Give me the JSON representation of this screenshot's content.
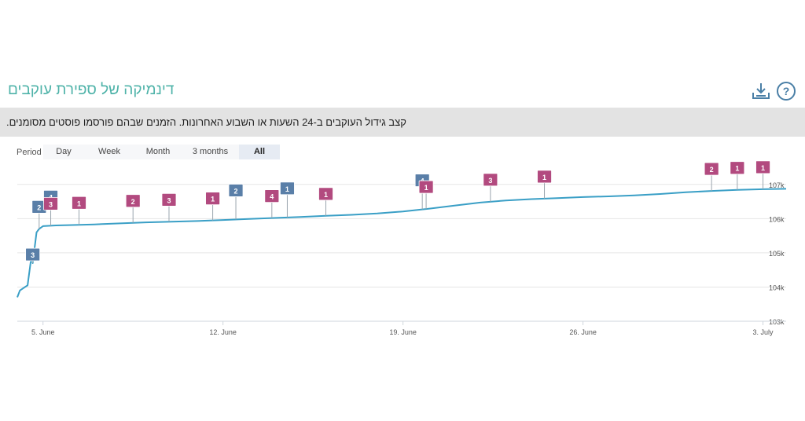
{
  "header": {
    "title": "דינמיקה של ספירת עוקבים",
    "download_icon": "download-icon",
    "help_icon": "question-mark-icon"
  },
  "description": "קצב גידול העוקבים ב-24 השעות או השבוע האחרונות. הזמנים שבהם פורסמו פוסטים מסומנים.",
  "period": {
    "label": "Period",
    "tabs": [
      "Day",
      "Week",
      "Month",
      "3 months",
      "All"
    ],
    "active": "All"
  },
  "colors": {
    "title": "#4fb3a9",
    "line": "#3a9fc6",
    "marker_blue": "#5a7fa8",
    "marker_pink": "#b24a7f",
    "grid": "#e6e6e6",
    "desc_bar": "#e3e3e3"
  },
  "chart_data": {
    "type": "line",
    "x_ticks": [
      "5. June",
      "12. June",
      "19. June",
      "26. June",
      "3. July"
    ],
    "x_tick_days": [
      5,
      12,
      19,
      26,
      33
    ],
    "y_ticks": [
      "103k",
      "104k",
      "105k",
      "106k",
      "107k"
    ],
    "y_tick_values": [
      103000,
      104000,
      105000,
      106000,
      107000
    ],
    "xlim": [
      4.0,
      33.9
    ],
    "ylim": [
      103000,
      107500
    ],
    "grid": true,
    "series": [
      {
        "x": [
          4.0,
          4.1,
          4.3,
          4.4,
          4.55,
          4.6,
          4.75,
          4.85,
          5.0,
          5.5,
          6.0,
          7,
          8,
          9,
          10,
          11,
          12,
          13,
          14,
          15,
          16,
          17,
          18,
          19,
          20,
          21,
          22,
          23,
          24,
          25,
          26,
          27,
          28,
          29,
          30,
          31,
          32,
          33,
          33.9
        ],
        "y": [
          103700,
          103900,
          104000,
          104050,
          104900,
          104700,
          105600,
          105700,
          105780,
          105800,
          105810,
          105830,
          105860,
          105890,
          105910,
          105930,
          105960,
          105990,
          106020,
          106050,
          106080,
          106110,
          106150,
          106210,
          106290,
          106380,
          106470,
          106530,
          106570,
          106600,
          106630,
          106650,
          106680,
          106720,
          106770,
          106810,
          106840,
          106860,
          106870
        ]
      }
    ],
    "markers": [
      {
        "label": "3",
        "x": 4.6,
        "color": "blue",
        "stack": 0
      },
      {
        "label": "2",
        "x": 4.85,
        "color": "blue",
        "stack": 0
      },
      {
        "label": "4",
        "x": 5.3,
        "color": "blue",
        "stack": 1
      },
      {
        "label": "3",
        "x": 5.3,
        "color": "pink",
        "stack": 0
      },
      {
        "label": "1",
        "x": 6.4,
        "color": "pink",
        "stack": 0
      },
      {
        "label": "2",
        "x": 8.5,
        "color": "pink",
        "stack": 0
      },
      {
        "label": "3",
        "x": 9.9,
        "color": "pink",
        "stack": 0
      },
      {
        "label": "1",
        "x": 11.6,
        "color": "pink",
        "stack": 0
      },
      {
        "label": "2",
        "x": 12.5,
        "color": "blue",
        "stack": 1
      },
      {
        "label": "4",
        "x": 13.9,
        "color": "pink",
        "stack": 0
      },
      {
        "label": "1",
        "x": 14.5,
        "color": "blue",
        "stack": 1
      },
      {
        "label": "1",
        "x": 16.0,
        "color": "pink",
        "stack": 0
      },
      {
        "label": "4",
        "x": 19.75,
        "color": "blue",
        "stack": 1
      },
      {
        "label": "1",
        "x": 19.9,
        "color": "pink",
        "stack": 0
      },
      {
        "label": "3",
        "x": 22.4,
        "color": "pink",
        "stack": 0
      },
      {
        "label": "1",
        "x": 24.5,
        "color": "pink",
        "stack": 0
      },
      {
        "label": "2",
        "x": 31.0,
        "color": "pink",
        "stack": 0
      },
      {
        "label": "1",
        "x": 32.0,
        "color": "pink",
        "stack": 0
      },
      {
        "label": "1",
        "x": 33.0,
        "color": "pink",
        "stack": 0
      }
    ]
  }
}
